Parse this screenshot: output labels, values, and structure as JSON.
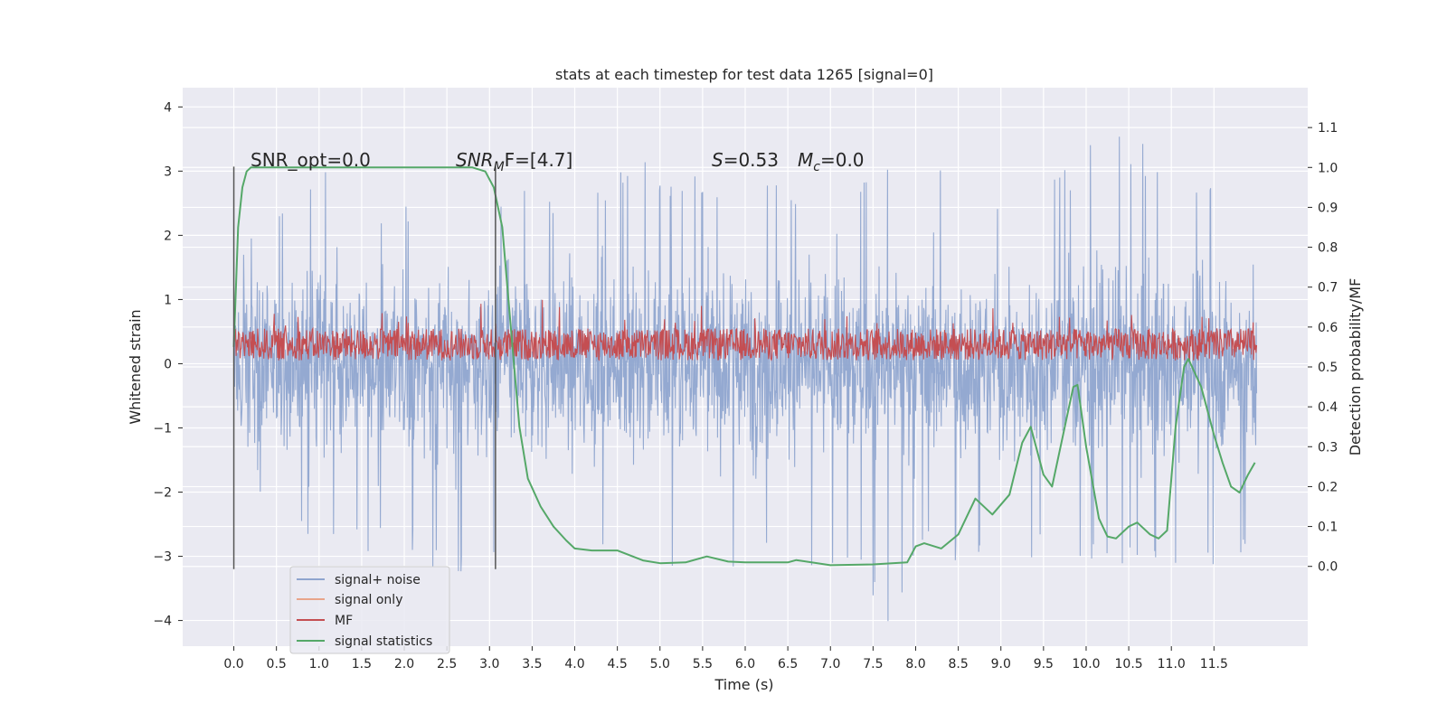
{
  "chart_data": {
    "type": "line",
    "title": "stats at each timestep for test data 1265 [signal=0]",
    "xlabel": "Time (s)",
    "ylabel": "Whitened strain",
    "ylabel_right": "Detection probability/MF",
    "xlim": [
      -0.6,
      12.6
    ],
    "ylim": [
      -4.4,
      4.3
    ],
    "ylim_right": [
      -0.2,
      1.2
    ],
    "x_ticks": [
      "0.0",
      "0.5",
      "1.0",
      "1.5",
      "2.0",
      "2.5",
      "3.0",
      "3.5",
      "4.0",
      "4.5",
      "5.0",
      "5.5",
      "6.0",
      "6.5",
      "7.0",
      "7.5",
      "8.0",
      "8.5",
      "9.0",
      "9.5",
      "10.0",
      "10.5",
      "11.0",
      "11.5"
    ],
    "y_ticks": [
      "4",
      "3",
      "2",
      "1",
      "0",
      "−1",
      "−2",
      "−3",
      "−4"
    ],
    "y_ticks_right": [
      "1.1",
      "1.0",
      "0.9",
      "0.8",
      "0.7",
      "0.6",
      "0.5",
      "0.4",
      "0.3",
      "0.2",
      "0.1",
      "0.0"
    ],
    "grid": true,
    "legend_position": "lower-left",
    "annotations": {
      "snr_opt": "SNR_opt=0.0",
      "snr_mf_sym": "SNR",
      "snr_mf_sub": "M",
      "snr_mf_rest": "F=[4.7]",
      "s_sym": "S",
      "s_val": "=0.53",
      "mc_sym": "M",
      "mc_sub": "c",
      "mc_val": "=0.0"
    },
    "vertical_lines_x": [
      0.0,
      3.07
    ],
    "series": [
      {
        "name": "signal+ noise",
        "color": "#8fa5cf",
        "axis": "left",
        "description_values": "noise band roughly between -2.5 and 2.5 with spikes to about ±3.9",
        "x_range": [
          0.0,
          12.0
        ],
        "envelope_upper": [
          1.8,
          2.5,
          2.7,
          3.9,
          2.5,
          2.6,
          2.8,
          2.7,
          2.9,
          2.6,
          2.7,
          3.3,
          2.8,
          3.0,
          2.6,
          3.0,
          2.8,
          2.7,
          3.3,
          2.6,
          3.9,
          2.6,
          3.0,
          3.1,
          3.9,
          3.4,
          3.1,
          3.2,
          3.4
        ],
        "envelope_lower": [
          -3.8,
          -2.7,
          -2.9,
          -3.1,
          -2.9,
          -3.0,
          -3.4,
          -3.0,
          -3.4,
          -3.9,
          -3.2,
          -3.3,
          -3.2,
          -3.3,
          -3.2,
          -3.0,
          -3.2,
          -3.3,
          -4.1,
          -3.0,
          -3.2,
          -3.0,
          -3.1,
          -3.3,
          -3.1,
          -3.2,
          -3.1,
          -3.2,
          -2.9
        ]
      },
      {
        "name": "signal only",
        "color": "#e8a58a",
        "axis": "left",
        "values": []
      },
      {
        "name": "MF",
        "color": "#c44e52",
        "axis": "left",
        "x_range": [
          0.0,
          12.0
        ],
        "band": [
          0.05,
          0.55
        ],
        "peaks": [
          1.0,
          0.8,
          0.75,
          0.8,
          0.7,
          0.75
        ]
      },
      {
        "name": "signal statistics",
        "color": "#55a868",
        "axis": "right",
        "x": [
          0.0,
          0.05,
          0.1,
          0.15,
          0.2,
          0.3,
          0.5,
          1.0,
          1.5,
          2.0,
          2.5,
          2.8,
          2.95,
          3.05,
          3.15,
          3.25,
          3.35,
          3.45,
          3.6,
          3.75,
          3.9,
          4.0,
          4.2,
          4.5,
          4.8,
          5.0,
          5.3,
          5.55,
          5.8,
          6.0,
          6.5,
          6.6,
          7.0,
          7.5,
          7.9,
          8.0,
          8.1,
          8.3,
          8.5,
          8.7,
          8.9,
          9.1,
          9.25,
          9.35,
          9.5,
          9.6,
          9.75,
          9.85,
          9.9,
          10.0,
          10.15,
          10.25,
          10.35,
          10.5,
          10.6,
          10.75,
          10.85,
          10.95,
          11.05,
          11.15,
          11.2,
          11.35,
          11.5,
          11.6,
          11.7,
          11.8,
          11.9,
          11.98
        ],
        "values": [
          0.55,
          0.85,
          0.95,
          0.99,
          1.0,
          1.0,
          1.0,
          1.0,
          1.0,
          1.0,
          1.0,
          1.0,
          0.99,
          0.95,
          0.85,
          0.6,
          0.35,
          0.22,
          0.15,
          0.1,
          0.065,
          0.045,
          0.04,
          0.04,
          0.015,
          0.008,
          0.01,
          0.025,
          0.012,
          0.01,
          0.01,
          0.016,
          0.003,
          0.005,
          0.01,
          0.05,
          0.058,
          0.045,
          0.08,
          0.17,
          0.13,
          0.18,
          0.31,
          0.35,
          0.23,
          0.2,
          0.35,
          0.45,
          0.455,
          0.3,
          0.12,
          0.075,
          0.07,
          0.1,
          0.11,
          0.08,
          0.07,
          0.09,
          0.35,
          0.5,
          0.52,
          0.45,
          0.33,
          0.26,
          0.2,
          0.185,
          0.23,
          0.26
        ]
      }
    ]
  }
}
